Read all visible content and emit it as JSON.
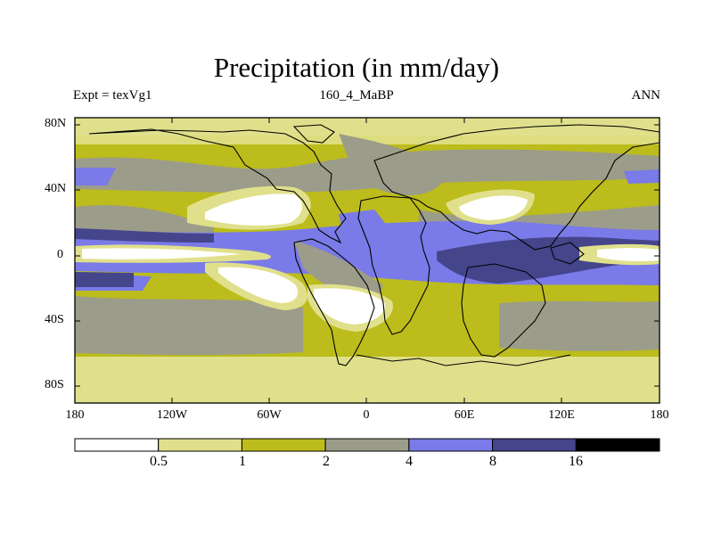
{
  "title": "Precipitation (in mm/day)",
  "left_label": "Expt = texVg1",
  "center_label": "160_4_MaBP",
  "right_label": "ANN",
  "lat_ticks": [
    "80N",
    "40N",
    "0",
    "40S",
    "80S"
  ],
  "lon_ticks": [
    "180",
    "120W",
    "60W",
    "0",
    "60E",
    "120E",
    "180"
  ],
  "colorbar": {
    "levels": [
      "0.5",
      "1",
      "2",
      "4",
      "8",
      "16"
    ],
    "colors": [
      "#ffffff",
      "#e0e08c",
      "#bcbc1c",
      "#9c9c8a",
      "#7a7ae8",
      "#45458c",
      "#000000"
    ]
  }
}
